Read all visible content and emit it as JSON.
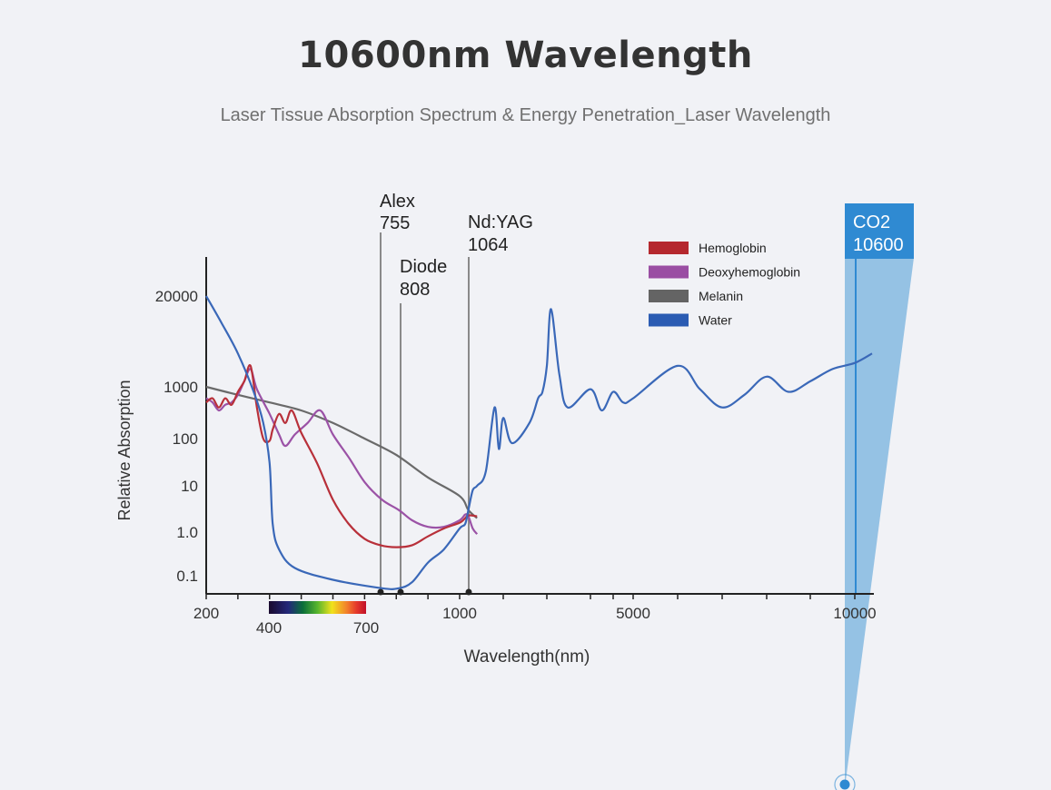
{
  "page": {
    "title": "10600nm Wavelength",
    "subtitle": "Laser Tissue Absorption Spectrum & Energy Penetration_Laser Wavelength"
  },
  "chart_data": {
    "type": "line",
    "title": "",
    "xlabel": "Wavelength(nm)",
    "ylabel": "Relative Absorption",
    "xscale": "piecewise: 200-1000 linear-detailed, 1000-10000 compressed",
    "x_ticks": [
      200,
      1000,
      5000,
      10000
    ],
    "x_sub_ticks": [
      300,
      400,
      500,
      600,
      700,
      800,
      900,
      1500,
      2000,
      3000,
      4000,
      6000,
      7000,
      8000,
      9000
    ],
    "y_ticks": [
      "0.1",
      "1.0",
      "10",
      "100",
      "1000",
      "20000"
    ],
    "y_tick_values": [
      0.1,
      1,
      10,
      100,
      1000,
      20000
    ],
    "ylim": [
      0.05,
      100000
    ],
    "visible_spectrum": {
      "start_label": "400",
      "end_label": "700",
      "start": 400,
      "end": 700
    },
    "legend": {
      "position": "top-right",
      "entries": [
        {
          "name": "Hemoglobin",
          "color": "#b5282e"
        },
        {
          "name": "Deoxyhemoglobin",
          "color": "#9a4ea3"
        },
        {
          "name": "Melanin",
          "color": "#646464"
        },
        {
          "name": "Water",
          "color": "#2b5cb3"
        }
      ]
    },
    "series": [
      {
        "name": "Water",
        "color": "#3a68b8",
        "points": [
          [
            200,
            20000
          ],
          [
            250,
            8000
          ],
          [
            300,
            3000
          ],
          [
            350,
            800
          ],
          [
            380,
            200
          ],
          [
            400,
            30
          ],
          [
            410,
            1.5
          ],
          [
            430,
            0.4
          ],
          [
            480,
            0.15
          ],
          [
            600,
            0.08
          ],
          [
            755,
            0.05
          ],
          [
            808,
            0.05
          ],
          [
            850,
            0.07
          ],
          [
            900,
            0.2
          ],
          [
            950,
            0.4
          ],
          [
            1000,
            1.2
          ],
          [
            1064,
            1.5
          ],
          [
            1100,
            3
          ],
          [
            1150,
            8
          ],
          [
            1200,
            10
          ],
          [
            1300,
            20
          ],
          [
            1400,
            400
          ],
          [
            1450,
            60
          ],
          [
            1500,
            250
          ],
          [
            1600,
            80
          ],
          [
            1800,
            200
          ],
          [
            1900,
            600
          ],
          [
            1950,
            800
          ],
          [
            2000,
            2000
          ],
          [
            2100,
            13000
          ],
          [
            2300,
            1500
          ],
          [
            2500,
            400
          ],
          [
            3000,
            900
          ],
          [
            3500,
            350
          ],
          [
            4000,
            800
          ],
          [
            4500,
            500
          ],
          [
            5000,
            600
          ],
          [
            6000,
            2000
          ],
          [
            6500,
            900
          ],
          [
            7000,
            400
          ],
          [
            7500,
            700
          ],
          [
            8000,
            1400
          ],
          [
            8500,
            800
          ],
          [
            9000,
            1200
          ],
          [
            9500,
            1800
          ],
          [
            10000,
            2200
          ],
          [
            10600,
            3000
          ]
        ]
      },
      {
        "name": "Hemoglobin",
        "color": "#b8303a",
        "points": [
          [
            200,
            500
          ],
          [
            220,
            600
          ],
          [
            240,
            400
          ],
          [
            260,
            600
          ],
          [
            280,
            450
          ],
          [
            300,
            800
          ],
          [
            320,
            1200
          ],
          [
            340,
            2000
          ],
          [
            360,
            400
          ],
          [
            380,
            100
          ],
          [
            400,
            90
          ],
          [
            410,
            150
          ],
          [
            430,
            300
          ],
          [
            450,
            200
          ],
          [
            470,
            350
          ],
          [
            500,
            130
          ],
          [
            550,
            30
          ],
          [
            600,
            5
          ],
          [
            650,
            1.5
          ],
          [
            700,
            0.7
          ],
          [
            750,
            0.5
          ],
          [
            800,
            0.45
          ],
          [
            850,
            0.5
          ],
          [
            900,
            0.8
          ],
          [
            950,
            1.2
          ],
          [
            1000,
            1.6
          ],
          [
            1064,
            2
          ],
          [
            1100,
            2.3
          ],
          [
            1200,
            2.2
          ]
        ]
      },
      {
        "name": "Deoxyhemoglobin",
        "color": "#9b52a6",
        "points": [
          [
            200,
            600
          ],
          [
            220,
            500
          ],
          [
            240,
            350
          ],
          [
            260,
            450
          ],
          [
            280,
            500
          ],
          [
            300,
            700
          ],
          [
            320,
            1200
          ],
          [
            340,
            1800
          ],
          [
            360,
            900
          ],
          [
            400,
            300
          ],
          [
            430,
            120
          ],
          [
            450,
            70
          ],
          [
            480,
            120
          ],
          [
            520,
            200
          ],
          [
            560,
            350
          ],
          [
            600,
            120
          ],
          [
            650,
            40
          ],
          [
            700,
            12
          ],
          [
            755,
            5
          ],
          [
            808,
            3
          ],
          [
            850,
            1.8
          ],
          [
            900,
            1.3
          ],
          [
            950,
            1.3
          ],
          [
            1000,
            1.8
          ],
          [
            1064,
            2.4
          ],
          [
            1100,
            2.2
          ],
          [
            1150,
            1.2
          ],
          [
            1200,
            0.9
          ]
        ]
      },
      {
        "name": "Melanin",
        "color": "#6a6a6a",
        "points": [
          [
            200,
            1000
          ],
          [
            300,
            700
          ],
          [
            400,
            500
          ],
          [
            500,
            350
          ],
          [
            600,
            200
          ],
          [
            700,
            100
          ],
          [
            800,
            45
          ],
          [
            900,
            15
          ],
          [
            1000,
            6
          ],
          [
            1100,
            3
          ],
          [
            1200,
            2
          ]
        ]
      }
    ],
    "laser_markers": [
      {
        "name": "Alex",
        "wavelength_label": "755",
        "wavelength": 755
      },
      {
        "name": "Diode",
        "wavelength_label": "808",
        "wavelength": 808
      },
      {
        "name": "Nd:YAG",
        "wavelength_label": "1064",
        "wavelength": 1064
      }
    ],
    "highlight": {
      "name": "CO2",
      "wavelength_label": "10600",
      "wavelength": 10600,
      "color": "#2f8ad2",
      "band_color": "#8fbfe3"
    }
  }
}
